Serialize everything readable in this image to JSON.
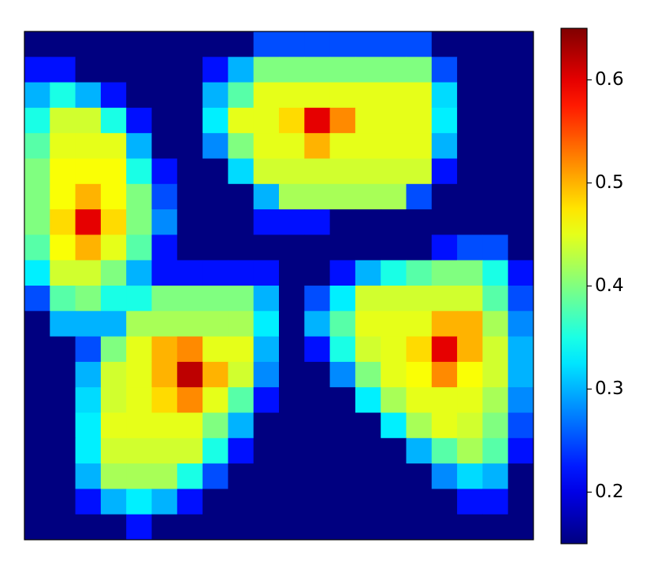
{
  "chart_data": {
    "type": "heatmap",
    "colormap": "jet",
    "clim": [
      0.15,
      0.65
    ],
    "cbar_ticks": [
      0.2,
      0.3,
      0.4,
      0.5,
      0.6
    ],
    "z": [
      [
        0.15,
        0.15,
        0.15,
        0.15,
        0.15,
        0.15,
        0.15,
        0.15,
        0.15,
        0.25,
        0.25,
        0.25,
        0.25,
        0.25,
        0.25,
        0.25,
        0.15,
        0.15,
        0.15,
        0.15
      ],
      [
        0.22,
        0.22,
        0.15,
        0.15,
        0.15,
        0.15,
        0.15,
        0.22,
        0.3,
        0.4,
        0.4,
        0.4,
        0.4,
        0.4,
        0.4,
        0.4,
        0.25,
        0.15,
        0.15,
        0.15
      ],
      [
        0.3,
        0.35,
        0.3,
        0.22,
        0.15,
        0.15,
        0.15,
        0.3,
        0.38,
        0.45,
        0.45,
        0.45,
        0.45,
        0.45,
        0.45,
        0.45,
        0.32,
        0.15,
        0.15,
        0.15
      ],
      [
        0.35,
        0.44,
        0.44,
        0.35,
        0.22,
        0.15,
        0.15,
        0.33,
        0.45,
        0.45,
        0.48,
        0.6,
        0.52,
        0.45,
        0.45,
        0.45,
        0.33,
        0.15,
        0.15,
        0.15
      ],
      [
        0.38,
        0.45,
        0.45,
        0.45,
        0.3,
        0.15,
        0.15,
        0.28,
        0.4,
        0.45,
        0.45,
        0.5,
        0.45,
        0.45,
        0.45,
        0.45,
        0.3,
        0.15,
        0.15,
        0.15
      ],
      [
        0.4,
        0.46,
        0.46,
        0.46,
        0.35,
        0.22,
        0.15,
        0.15,
        0.32,
        0.44,
        0.44,
        0.44,
        0.44,
        0.44,
        0.44,
        0.44,
        0.22,
        0.15,
        0.15,
        0.15
      ],
      [
        0.4,
        0.46,
        0.5,
        0.46,
        0.4,
        0.25,
        0.15,
        0.15,
        0.15,
        0.3,
        0.42,
        0.42,
        0.42,
        0.42,
        0.42,
        0.25,
        0.15,
        0.15,
        0.15,
        0.15
      ],
      [
        0.4,
        0.48,
        0.6,
        0.48,
        0.4,
        0.28,
        0.15,
        0.15,
        0.15,
        0.22,
        0.22,
        0.22,
        0.15,
        0.15,
        0.15,
        0.15,
        0.15,
        0.15,
        0.15,
        0.15
      ],
      [
        0.38,
        0.46,
        0.5,
        0.45,
        0.38,
        0.22,
        0.15,
        0.15,
        0.15,
        0.15,
        0.15,
        0.15,
        0.15,
        0.15,
        0.15,
        0.15,
        0.22,
        0.25,
        0.25,
        0.15
      ],
      [
        0.33,
        0.44,
        0.44,
        0.4,
        0.3,
        0.22,
        0.22,
        0.22,
        0.22,
        0.22,
        0.15,
        0.15,
        0.22,
        0.3,
        0.35,
        0.38,
        0.4,
        0.4,
        0.35,
        0.22
      ],
      [
        0.25,
        0.38,
        0.4,
        0.35,
        0.35,
        0.4,
        0.4,
        0.4,
        0.4,
        0.3,
        0.15,
        0.25,
        0.33,
        0.44,
        0.44,
        0.44,
        0.44,
        0.44,
        0.38,
        0.25
      ],
      [
        0.15,
        0.3,
        0.3,
        0.3,
        0.42,
        0.42,
        0.42,
        0.42,
        0.42,
        0.33,
        0.15,
        0.3,
        0.38,
        0.45,
        0.45,
        0.45,
        0.5,
        0.5,
        0.42,
        0.28
      ],
      [
        0.15,
        0.15,
        0.25,
        0.4,
        0.45,
        0.5,
        0.52,
        0.45,
        0.45,
        0.3,
        0.15,
        0.22,
        0.35,
        0.44,
        0.45,
        0.48,
        0.6,
        0.5,
        0.44,
        0.3
      ],
      [
        0.15,
        0.15,
        0.3,
        0.44,
        0.45,
        0.5,
        0.62,
        0.5,
        0.44,
        0.28,
        0.15,
        0.15,
        0.28,
        0.4,
        0.45,
        0.46,
        0.52,
        0.46,
        0.44,
        0.3
      ],
      [
        0.15,
        0.15,
        0.32,
        0.44,
        0.45,
        0.48,
        0.52,
        0.45,
        0.38,
        0.22,
        0.15,
        0.15,
        0.15,
        0.33,
        0.42,
        0.45,
        0.45,
        0.45,
        0.42,
        0.28
      ],
      [
        0.15,
        0.15,
        0.33,
        0.45,
        0.45,
        0.45,
        0.45,
        0.4,
        0.3,
        0.15,
        0.15,
        0.15,
        0.15,
        0.15,
        0.33,
        0.42,
        0.45,
        0.44,
        0.4,
        0.25
      ],
      [
        0.15,
        0.15,
        0.33,
        0.44,
        0.44,
        0.44,
        0.44,
        0.35,
        0.22,
        0.15,
        0.15,
        0.15,
        0.15,
        0.15,
        0.15,
        0.3,
        0.38,
        0.42,
        0.38,
        0.22
      ],
      [
        0.15,
        0.15,
        0.3,
        0.42,
        0.42,
        0.42,
        0.35,
        0.25,
        0.15,
        0.15,
        0.15,
        0.15,
        0.15,
        0.15,
        0.15,
        0.15,
        0.28,
        0.32,
        0.3,
        0.15
      ],
      [
        0.15,
        0.15,
        0.22,
        0.3,
        0.33,
        0.3,
        0.22,
        0.15,
        0.15,
        0.15,
        0.15,
        0.15,
        0.15,
        0.15,
        0.15,
        0.15,
        0.15,
        0.22,
        0.22,
        0.15
      ],
      [
        0.15,
        0.15,
        0.15,
        0.15,
        0.22,
        0.15,
        0.15,
        0.15,
        0.15,
        0.15,
        0.15,
        0.15,
        0.15,
        0.15,
        0.15,
        0.15,
        0.15,
        0.15,
        0.15,
        0.15
      ]
    ]
  }
}
